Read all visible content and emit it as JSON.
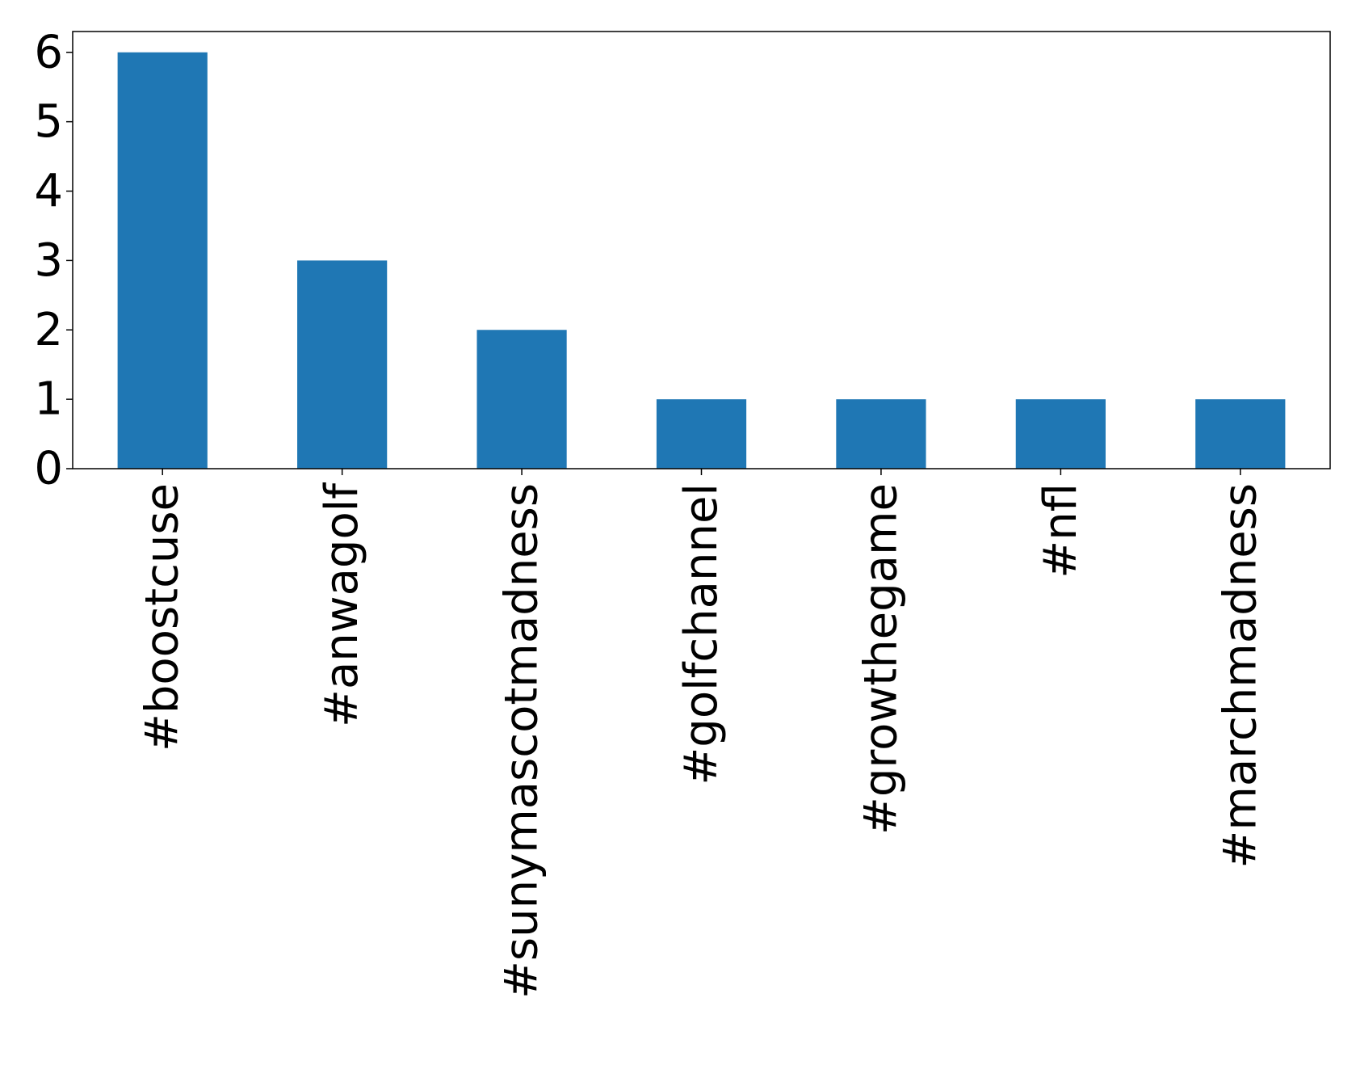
{
  "chart_data": {
    "type": "bar",
    "categories": [
      "#boostcuse",
      "#anwagolf",
      "#sunymascotmadness",
      "#golfchannel",
      "#growthegame",
      "#nfl",
      "#marchmadness"
    ],
    "values": [
      6,
      3,
      2,
      1,
      1,
      1,
      1
    ],
    "ylim": [
      0,
      6.3
    ],
    "yticks": [
      "0",
      "1",
      "2",
      "3",
      "4",
      "5",
      "6"
    ],
    "grid": false,
    "legend": "none",
    "bar_color": "#1f77b4",
    "axis_color": "#000000"
  }
}
